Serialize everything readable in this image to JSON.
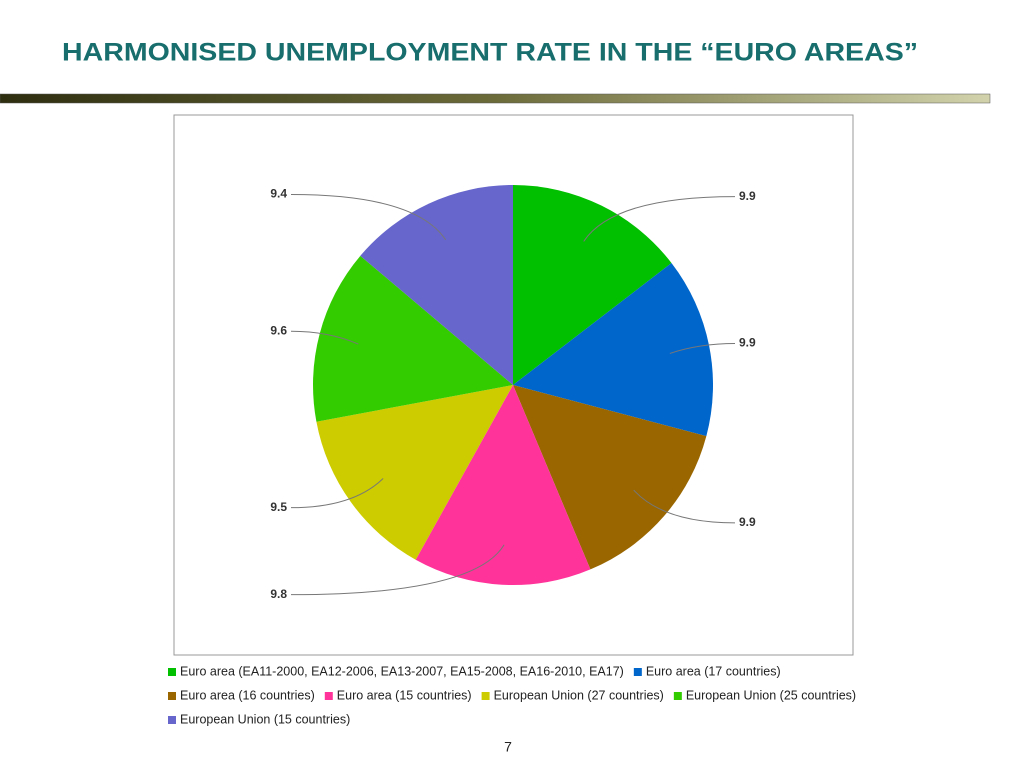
{
  "chart_data": {
    "type": "pie",
    "title": "HARMONISED UNEMPLOYMENT RATE IN THE “EURO AREAS”",
    "series": [
      {
        "name": "Euro area (EA11-2000, EA12-2006, EA13-2007, EA15-2008, EA16-2010, EA17)",
        "color": "#00c000"
      },
      {
        "name": "Euro area (17 countries)",
        "color": "#0066cc"
      },
      {
        "name": "Euro area (16 countries)",
        "color": "#996600"
      },
      {
        "name": "Euro area (15 countries)",
        "color": "#ff3399"
      },
      {
        "name": "European Union (27 countries)",
        "color": "#cccc00"
      },
      {
        "name": "European Union (25 countries)",
        "color": "#33cc00"
      },
      {
        "name": "European Union (15 countries)",
        "color": "#6666cc"
      }
    ],
    "values": [
      9.9,
      9.9,
      9.9,
      9.8,
      9.5,
      9.6,
      9.4
    ],
    "legend": "bottom"
  },
  "slide": {
    "page_number": "7"
  }
}
